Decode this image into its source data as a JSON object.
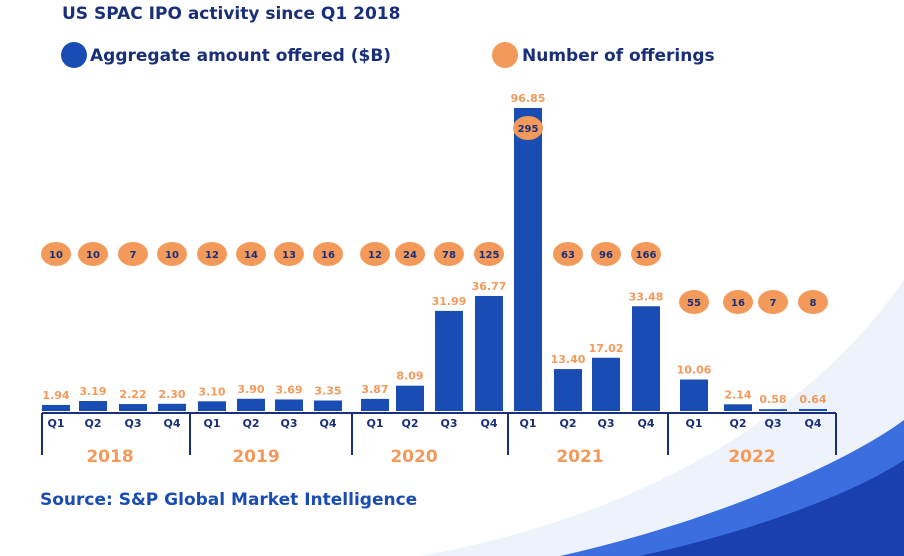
{
  "chart_data": {
    "type": "bar",
    "title": "US SPAC IPO activity since Q1 2018",
    "source": "Source: S&P Global Market Intelligence",
    "categories": [
      "Q1",
      "Q2",
      "Q3",
      "Q4",
      "Q1",
      "Q2",
      "Q3",
      "Q4",
      "Q1",
      "Q2",
      "Q3",
      "Q4",
      "Q1",
      "Q2",
      "Q3",
      "Q4",
      "Q1",
      "Q2",
      "Q3",
      "Q4"
    ],
    "years": [
      "2018",
      "2019",
      "2020",
      "2021",
      "2022"
    ],
    "series": [
      {
        "name": "Aggregate amount offered ($B)",
        "color": "#1a4db3",
        "values": [
          1.94,
          3.19,
          2.22,
          2.3,
          3.1,
          3.9,
          3.69,
          3.35,
          3.87,
          8.09,
          31.99,
          36.77,
          96.85,
          13.4,
          17.02,
          33.48,
          10.06,
          2.14,
          0.58,
          0.64
        ],
        "value_labels": [
          "1.94",
          "3.19",
          "2.22",
          "2.30",
          "3.10",
          "3.90",
          "3.69",
          "3.35",
          "3.87",
          "8.09",
          "31.99",
          "36.77",
          "96.85",
          "13.40",
          "17.02",
          "33.48",
          "10.06",
          "2.14",
          "0.58",
          "0.64"
        ],
        "label_color": "#f39a5b"
      },
      {
        "name": "Number of offerings",
        "color": "#f39a5b",
        "values": [
          10,
          10,
          7,
          10,
          12,
          14,
          13,
          16,
          12,
          24,
          78,
          125,
          295,
          63,
          96,
          166,
          55,
          16,
          7,
          8
        ]
      }
    ]
  }
}
